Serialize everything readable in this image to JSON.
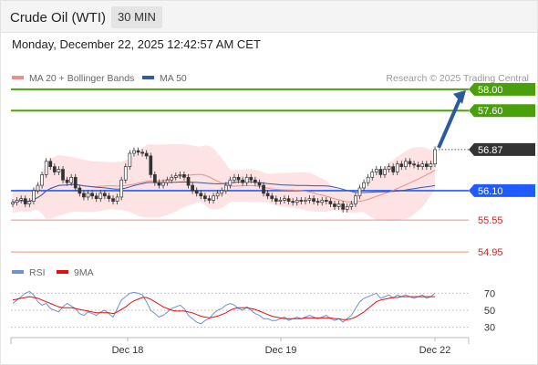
{
  "header": {
    "title": "Crude Oil (WTI)",
    "timeframe": "30 MIN"
  },
  "datetime": "Monday, December 22, 2025 12:42:57 AM CET",
  "legend_main": {
    "ma20": "MA 20 + Bollinger Bands",
    "ma50": "MA 50"
  },
  "legend_rsi": {
    "rsi": "RSI",
    "ma9": "9MA"
  },
  "copyright": "Research © 2025 Trading Central",
  "colors": {
    "resistance": "#4aa00a",
    "support": "#f08c8c",
    "pivot": "#1f5bff",
    "price": "#333333",
    "ma20": "#f08c8c",
    "ma50": "#3a5aa0",
    "band": "#fde0e0",
    "up": "#26a69a",
    "down": "#c62828",
    "rsi": "#6f8fd8",
    "rsi_ma": "#e01010",
    "arrow": "#2c5a9c"
  },
  "chart_data": {
    "type": "candlestick",
    "instrument": "Crude Oil (WTI)",
    "interval": "30 MIN",
    "ylim": [
      54.85,
      58.1
    ],
    "x_ticks": [
      "Dec 18",
      "Dec 19",
      "Dec 22"
    ],
    "levels": [
      {
        "label": "58.00",
        "value": 58.0,
        "kind": "resistance"
      },
      {
        "label": "57.60",
        "value": 57.6,
        "kind": "resistance"
      },
      {
        "label": "56.87",
        "value": 56.87,
        "kind": "last"
      },
      {
        "label": "56.10",
        "value": 56.1,
        "kind": "pivot"
      },
      {
        "label": "55.55",
        "value": 55.55,
        "kind": "support"
      },
      {
        "label": "54.95",
        "value": 54.95,
        "kind": "support"
      }
    ],
    "forecast": {
      "from": 56.87,
      "to": 58.0
    },
    "close": [
      55.88,
      55.92,
      55.95,
      55.85,
      55.9,
      56.1,
      56.2,
      56.4,
      56.65,
      56.55,
      56.45,
      56.5,
      56.3,
      56.25,
      56.35,
      56.15,
      56.05,
      55.98,
      56.05,
      56.0,
      55.95,
      56.05,
      56.0,
      55.95,
      55.9,
      55.98,
      56.3,
      56.55,
      56.8,
      56.85,
      56.82,
      56.8,
      56.75,
      56.4,
      56.25,
      56.2,
      56.25,
      56.3,
      56.35,
      56.38,
      56.4,
      56.35,
      56.2,
      56.1,
      56.05,
      56.0,
      55.95,
      55.92,
      56.0,
      56.05,
      56.1,
      56.2,
      56.3,
      56.35,
      56.3,
      56.25,
      56.35,
      56.3,
      56.25,
      56.2,
      56.05,
      56.0,
      55.95,
      55.9,
      55.92,
      55.95,
      55.9,
      55.88,
      55.92,
      55.9,
      55.92,
      55.95,
      55.9,
      55.88,
      55.92,
      55.9,
      55.85,
      55.8,
      55.85,
      55.75,
      55.8,
      55.85,
      56.0,
      56.15,
      56.25,
      56.35,
      56.45,
      56.5,
      56.4,
      56.5,
      56.55,
      56.45,
      56.6,
      56.55,
      56.65,
      56.6,
      56.58,
      56.55,
      56.6,
      56.55,
      56.6,
      56.87
    ],
    "rsi_ticks": [
      70,
      50,
      30
    ],
    "rsi_ylim": [
      20,
      80
    ],
    "rsi": [
      58,
      62,
      66,
      70,
      72,
      68,
      60,
      56,
      58,
      52,
      50,
      48,
      54,
      58,
      55,
      52,
      46,
      44,
      48,
      46,
      44,
      48,
      50,
      46,
      42,
      52,
      62,
      66,
      70,
      71,
      70,
      68,
      60,
      50,
      46,
      42,
      44,
      48,
      52,
      54,
      56,
      52,
      44,
      40,
      36,
      34,
      38,
      40,
      46,
      50,
      52,
      56,
      58,
      56,
      52,
      50,
      54,
      50,
      46,
      44,
      40,
      40,
      38,
      38,
      40,
      42,
      38,
      40,
      42,
      40,
      42,
      44,
      42,
      40,
      42,
      44,
      40,
      38,
      40,
      36,
      40,
      44,
      52,
      60,
      64,
      66,
      68,
      70,
      64,
      66,
      68,
      64,
      68,
      66,
      68,
      66,
      64,
      66,
      68,
      64,
      66,
      70
    ],
    "rsi_ma": [
      62,
      63,
      64,
      65,
      66,
      65,
      64,
      62,
      60,
      58,
      56,
      54,
      53,
      53,
      53,
      52,
      51,
      50,
      49,
      48,
      47,
      47,
      47,
      47,
      46,
      48,
      51,
      54,
      58,
      61,
      63,
      65,
      65,
      63,
      60,
      57,
      54,
      52,
      50,
      49,
      49,
      49,
      48,
      47,
      45,
      43,
      42,
      41,
      42,
      43,
      45,
      47,
      50,
      52,
      53,
      53,
      53,
      52,
      51,
      49,
      47,
      45,
      43,
      42,
      41,
      40,
      40,
      40,
      40,
      40,
      41,
      41,
      41,
      41,
      41,
      41,
      41,
      40,
      40,
      39,
      39,
      40,
      42,
      45,
      48,
      52,
      56,
      60,
      62,
      63,
      64,
      65,
      65,
      66,
      66,
      66,
      66,
      66,
      66,
      66,
      66,
      66
    ]
  }
}
